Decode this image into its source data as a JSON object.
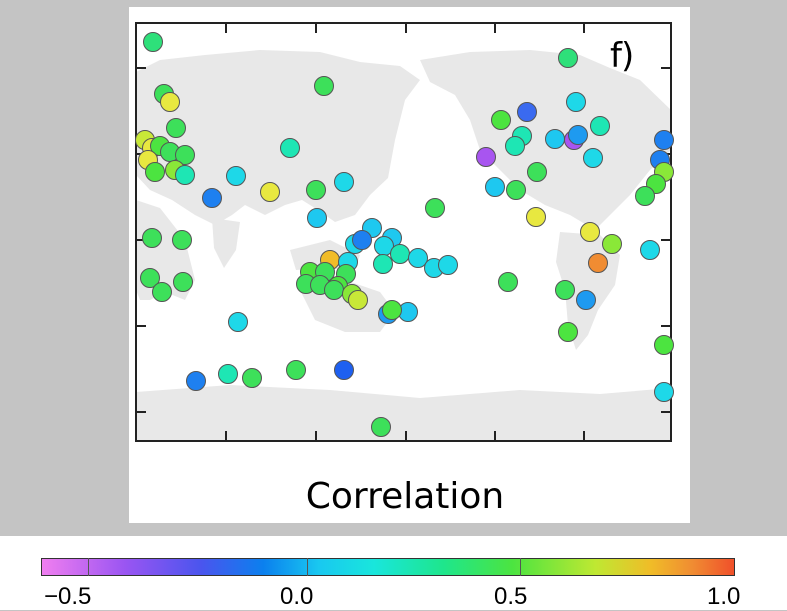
{
  "panel_label": "f)",
  "colorbar": {
    "title": "Correlation",
    "tick_labels": [
      "−0.5",
      "0.0",
      "0.5",
      "1.0"
    ],
    "range": [
      -0.6,
      1.0
    ]
  },
  "colors": {
    "background": "#c4c4c4",
    "land": "#e8e8e8",
    "station_outline": "#555555"
  }
}
